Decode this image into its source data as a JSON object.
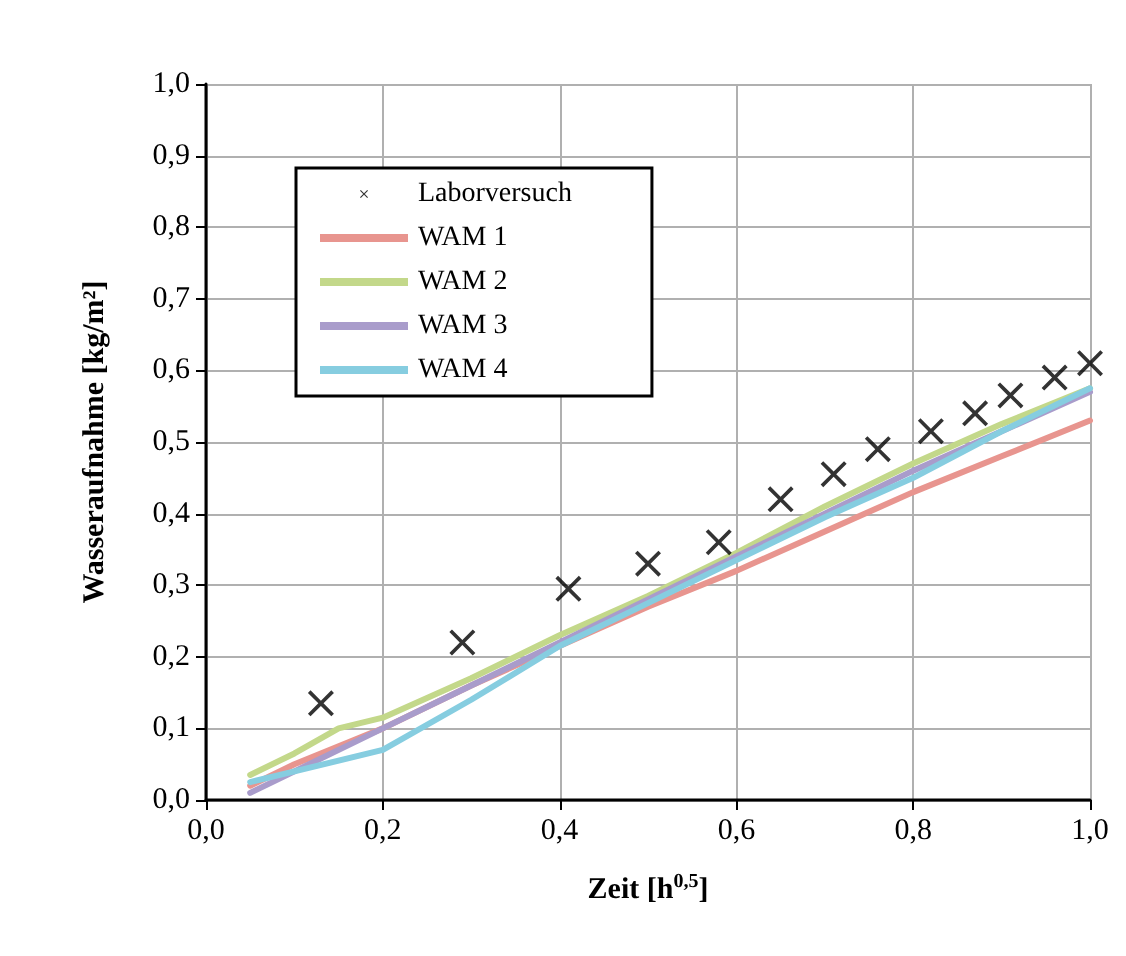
{
  "chart_data": {
    "type": "line",
    "xlabel": "Zeit [h$^{0,5}$]",
    "ylabel": "Wasseraufnahme [kg/m²]",
    "xlim": [
      0,
      1
    ],
    "xticks": [
      {
        "value": 0,
        "label": "0,0"
      },
      {
        "value": 0.2,
        "label": "0,2"
      },
      {
        "value": 0.4,
        "label": "0,4"
      },
      {
        "value": 0.6,
        "label": "0,6"
      },
      {
        "value": 0.8,
        "label": "0,8"
      },
      {
        "value": 1,
        "label": "1,0"
      }
    ],
    "ylim": [
      0,
      1
    ],
    "yticks": [
      {
        "value": 0,
        "label": "0,0"
      },
      {
        "value": 0.1,
        "label": "0,1"
      },
      {
        "value": 0.2,
        "label": "0,2"
      },
      {
        "value": 0.3,
        "label": "0,3"
      },
      {
        "value": 0.4,
        "label": "0,4"
      },
      {
        "value": 0.5,
        "label": "0,5"
      },
      {
        "value": 0.6,
        "label": "0,6"
      },
      {
        "value": 0.7,
        "label": "0,7"
      },
      {
        "value": 0.8,
        "label": "0,8"
      },
      {
        "value": 0.9,
        "label": "0,9"
      },
      {
        "value": 1,
        "label": "1,0"
      }
    ],
    "grid": true,
    "legend": "top left",
    "series": [
      {
        "name": "Laborversuch",
        "type": "scatter",
        "marker": "cross",
        "color": "#000000",
        "x": [
          0.13,
          0.29,
          0.41,
          0.5,
          0.58,
          0.65,
          0.71,
          0.76,
          0.82,
          0.87,
          0.91,
          0.96,
          1.0
        ],
        "values": [
          0.135,
          0.22,
          0.295,
          0.33,
          0.36,
          0.42,
          0.455,
          0.49,
          0.515,
          0.54,
          0.565,
          0.59,
          0.61
        ]
      },
      {
        "name": "WAM 1",
        "marker": "none",
        "color": "#e8958f",
        "x": [
          0.05,
          0.1,
          0.2,
          0.3,
          0.4,
          0.5,
          0.6,
          0.7,
          0.8,
          0.9,
          1.0
        ],
        "values": [
          0.02,
          0.05,
          0.1,
          0.16,
          0.215,
          0.27,
          0.32,
          0.375,
          0.43,
          0.48,
          0.53
        ]
      },
      {
        "name": "WAM 2",
        "marker": "none",
        "color": "#c3d88a",
        "x": [
          0.05,
          0.1,
          0.15,
          0.2,
          0.3,
          0.4,
          0.5,
          0.6,
          0.7,
          0.8,
          0.9,
          1.0
        ],
        "values": [
          0.035,
          0.065,
          0.1,
          0.115,
          0.17,
          0.23,
          0.285,
          0.345,
          0.41,
          0.47,
          0.525,
          0.575
        ]
      },
      {
        "name": "WAM 3",
        "marker": "none",
        "color": "#a99ccb",
        "x": [
          0.05,
          0.1,
          0.2,
          0.3,
          0.4,
          0.5,
          0.6,
          0.7,
          0.8,
          0.9,
          1.0
        ],
        "values": [
          0.01,
          0.04,
          0.1,
          0.16,
          0.22,
          0.28,
          0.34,
          0.4,
          0.46,
          0.515,
          0.57
        ]
      },
      {
        "name": "WAM 4",
        "marker": "none",
        "color": "#86cde0",
        "x": [
          0.05,
          0.1,
          0.2,
          0.3,
          0.4,
          0.5,
          0.6,
          0.7,
          0.8,
          0.9,
          1.0
        ],
        "values": [
          0.025,
          0.04,
          0.07,
          0.14,
          0.215,
          0.275,
          0.335,
          0.395,
          0.45,
          0.515,
          0.575
        ]
      }
    ]
  }
}
